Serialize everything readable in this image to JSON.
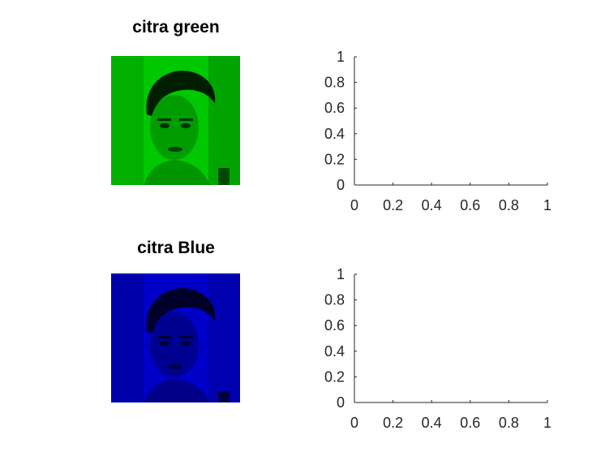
{
  "panels": [
    {
      "title": "citra green",
      "tint": "#00c800"
    },
    {
      "title": "citra Blue",
      "tint": "#0000c8"
    }
  ],
  "chart_data": [
    {
      "type": "line",
      "title": "",
      "xlabel": "",
      "ylabel": "",
      "xlim": [
        0,
        1
      ],
      "ylim": [
        0,
        1
      ],
      "xticks": [
        "0",
        "0.2",
        "0.4",
        "0.6",
        "0.8",
        "1"
      ],
      "yticks": [
        "0",
        "0.2",
        "0.4",
        "0.6",
        "0.8",
        "1"
      ],
      "grid": false,
      "series": []
    },
    {
      "type": "line",
      "title": "",
      "xlabel": "",
      "ylabel": "",
      "xlim": [
        0,
        1
      ],
      "ylim": [
        0,
        1
      ],
      "xticks": [
        "0",
        "0.2",
        "0.4",
        "0.6",
        "0.8",
        "1"
      ],
      "yticks": [
        "0",
        "0.2",
        "0.4",
        "0.6",
        "0.8",
        "1"
      ],
      "grid": false,
      "series": []
    }
  ]
}
